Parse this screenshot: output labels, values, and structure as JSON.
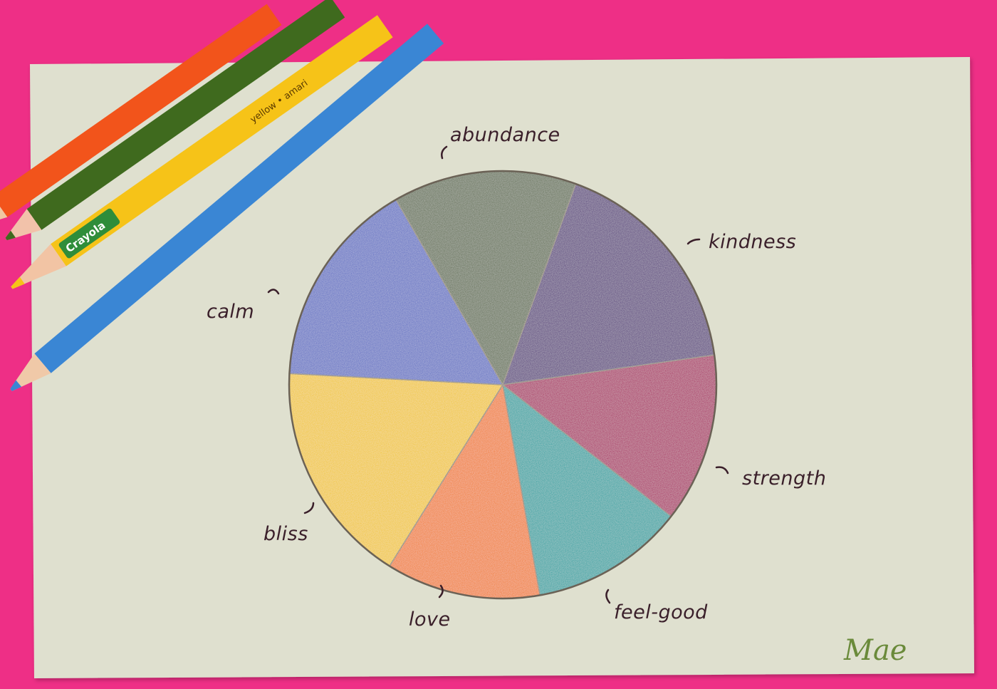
{
  "photo": {
    "background_color": "#ee2f86",
    "paper_color": "#dfe0cf",
    "signature": "Mae"
  },
  "pencils": [
    {
      "name": "orange",
      "color": "#f2541b"
    },
    {
      "name": "green",
      "color": "#3f6a1e"
    },
    {
      "name": "yellow",
      "color": "#f6c318",
      "brand": "Crayola",
      "print": "yellow • amari"
    },
    {
      "name": "blue",
      "color": "#3a86d4"
    }
  ],
  "chart_data": {
    "type": "pie",
    "title": "",
    "slices": [
      {
        "label": "abundance",
        "color": "#5f6d4f"
      },
      {
        "label": "kindness",
        "color": "#55397a"
      },
      {
        "label": "strength",
        "color": "#a8185e"
      },
      {
        "label": "feel-good",
        "color": "#17a0a0"
      },
      {
        "label": "love",
        "color": "#f07a1c"
      },
      {
        "label": "bliss",
        "color": "#f0c51d"
      },
      {
        "label": "calm",
        "color": "#5c6cc2"
      }
    ]
  }
}
